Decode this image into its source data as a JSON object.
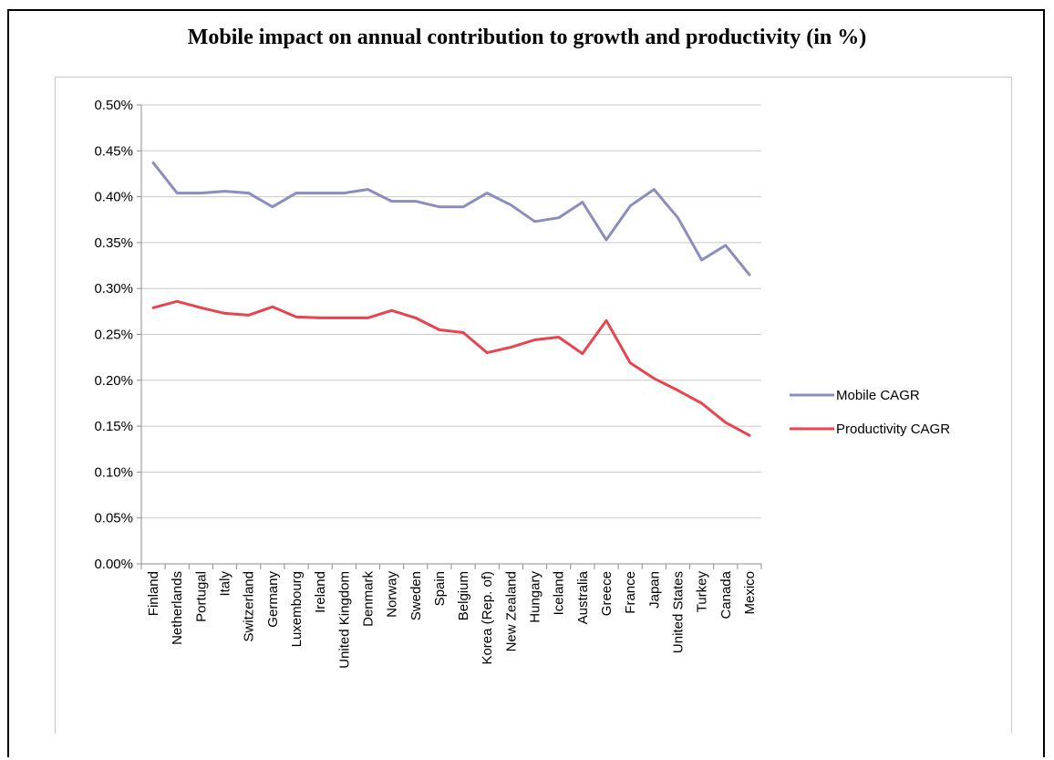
{
  "chart_data": {
    "type": "line",
    "title": "Mobile impact on annual contribution to growth and productivity (in %)",
    "xlabel": "",
    "ylabel": "",
    "ylim": [
      0,
      0.5
    ],
    "yticks": [
      "0.00%",
      "0.05%",
      "0.10%",
      "0.15%",
      "0.20%",
      "0.25%",
      "0.30%",
      "0.35%",
      "0.40%",
      "0.45%",
      "0.50%"
    ],
    "grid": "horizontal",
    "legend_position": "right",
    "categories": [
      "Finland",
      "Netherlands",
      "Portugal",
      "Italy",
      "Switzerland",
      "Germany",
      "Luxembourg",
      "Ireland",
      "United Kingdom",
      "Denmark",
      "Norway",
      "Sweden",
      "Spain",
      "Belgium",
      "Korea (Rep. of)",
      "New Zealand",
      "Hungary",
      "Iceland",
      "Australia",
      "Greece",
      "France",
      "Japan",
      "United States",
      "Turkey",
      "Canada",
      "Mexico"
    ],
    "series": [
      {
        "name": "Mobile CAGR",
        "color": "#8c8cc0",
        "values": [
          0.437,
          0.404,
          0.404,
          0.406,
          0.404,
          0.389,
          0.404,
          0.404,
          0.404,
          0.408,
          0.395,
          0.395,
          0.389,
          0.389,
          0.404,
          0.391,
          0.373,
          0.377,
          0.394,
          0.353,
          0.39,
          0.408,
          0.377,
          0.331,
          0.347,
          0.315
        ]
      },
      {
        "name": "Productivity CAGR",
        "color": "#e8434f",
        "values": [
          0.279,
          0.286,
          0.279,
          0.273,
          0.271,
          0.28,
          0.269,
          0.268,
          0.268,
          0.268,
          0.276,
          0.268,
          0.255,
          0.252,
          0.23,
          0.236,
          0.244,
          0.247,
          0.229,
          0.265,
          0.219,
          0.202,
          0.189,
          0.175,
          0.154,
          0.14
        ]
      }
    ]
  }
}
